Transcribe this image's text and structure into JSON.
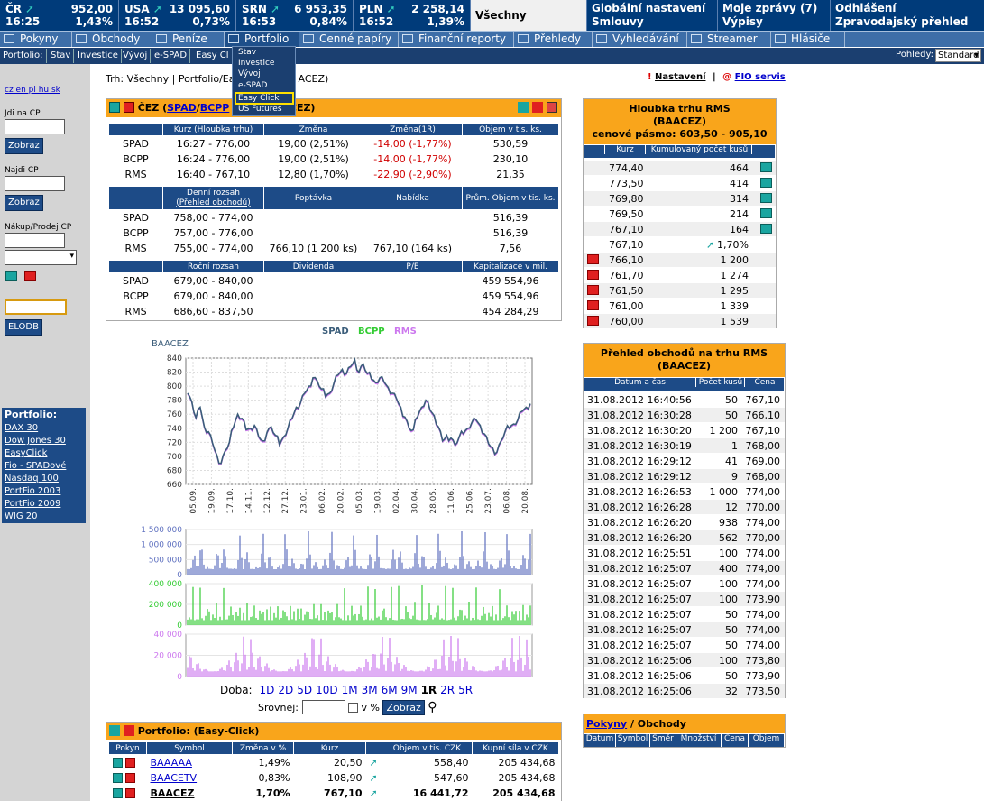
{
  "top_indices": [
    {
      "name": "ČR",
      "value": "952,00",
      "time": "16:25",
      "change": "1,43%"
    },
    {
      "name": "USA",
      "value": "13 095,60",
      "time": "16:52",
      "change": "0,73%"
    },
    {
      "name": "SRN",
      "value": "6 953,35",
      "time": "16:53",
      "change": "0,84%"
    },
    {
      "name": "PLN",
      "value": "2 258,14",
      "time": "16:52",
      "change": "1,39%"
    }
  ],
  "top_tab": "Všechny",
  "top_links": [
    {
      "l1": "Globální nastavení",
      "l2": "Smlouvy"
    },
    {
      "l1": "Moje zprávy (7)",
      "l2": "Výpisy"
    },
    {
      "l1": "Odhlášení",
      "l2": "Zpravodajský přehled"
    }
  ],
  "menu": [
    "Pokyny",
    "Obchody",
    "Peníze",
    "Portfolio",
    "Cenné papíry",
    "Finanční reporty",
    "Přehledy",
    "Vyhledávání",
    "Streamer",
    "Hlásiče"
  ],
  "submenu": [
    "Portfolio:",
    "Stav",
    "Investice",
    "Vývoj",
    "e-SPAD",
    "Easy Cl"
  ],
  "pohledy_label": "Pohledy:",
  "pohledy_value": "Standard",
  "dropdown": [
    "Stav",
    "Investice",
    "Vývoj",
    "e-SPAD",
    "Easy Click",
    "US Futures"
  ],
  "sidebar": {
    "langs": "cz en pl hu sk",
    "jdi": "Jdi na CP",
    "najdi": "Najdi CP",
    "nakup": "Nákup/Prodej CP",
    "zobraz": "Zobraz",
    "elodb": "ELODB",
    "pf_title": "Portfolio:",
    "pf_items": [
      "DAX 30",
      "Dow Jones 30",
      "EasyClick",
      "Fio - SPADové",
      "Nasdaq 100",
      "PortFio 2003",
      "PortFio 2009",
      "WIG 20"
    ]
  },
  "breadcrumb": "Trh: Všechny | Portfolio/Easy Click/BAACEZ (ČEZ)",
  "breadcrumb_visible_start": "Trh: Všechny | Portfolio/Ea",
  "breadcrumb_visible_end": "ACEZ)",
  "nastaveni": "Nastavení",
  "fio_servis": "FIO servis",
  "cez": {
    "title_prefix": "ČEZ (",
    "spad": "SPAD",
    "bcpp": "BCPP",
    "title_end": "ACEZ)",
    "h1": [
      "",
      "Kurz (Hloubka trhu)",
      "Změna",
      "Změna(1R)",
      "Objem v tis. ks."
    ],
    "r1": [
      [
        "SPAD",
        "16:27 - 776,00",
        "19,00 (2,51%)",
        "-14,00 (-1,77%)",
        "530,59"
      ],
      [
        "BCPP",
        "16:24 - 776,00",
        "19,00 (2,51%)",
        "-14,00 (-1,77%)",
        "230,10"
      ],
      [
        "RMS",
        "16:40 - 767,10",
        "12,80 (1,70%)",
        "-22,90 (-2,90%)",
        "21,35"
      ]
    ],
    "h2a": "Denní rozsah",
    "h2b": "(Přehled obchodů)",
    "h2": [
      "Poptávka",
      "Nabídka",
      "Prům. Objem v tis. ks."
    ],
    "r2": [
      [
        "SPAD",
        "758,00 - 774,00",
        "",
        "",
        "516,39"
      ],
      [
        "BCPP",
        "757,00 - 776,00",
        "",
        "",
        "516,39"
      ],
      [
        "RMS",
        "755,00 - 774,00",
        "766,10 (1 200 ks)",
        "767,10 (164 ks)",
        "7,56"
      ]
    ],
    "h3": [
      "",
      "Roční rozsah",
      "Dividenda",
      "P/E",
      "Kapitalizace v mil."
    ],
    "r3": [
      [
        "SPAD",
        "679,00 - 840,00",
        "",
        "",
        "459 554,96"
      ],
      [
        "BCPP",
        "679,00 - 840,00",
        "",
        "",
        "459 554,96"
      ],
      [
        "RMS",
        "686,60 - 837,50",
        "",
        "",
        "454 284,29"
      ]
    ]
  },
  "chart_data": {
    "type": "line",
    "title": "BAACEZ",
    "legend": [
      {
        "name": "SPAD",
        "color": "#3b5d7a"
      },
      {
        "name": "BCPP",
        "color": "#33cc33"
      },
      {
        "name": "RMS",
        "color": "#cc77ee"
      }
    ],
    "ylim": [
      660,
      840
    ],
    "yticks": [
      660,
      680,
      700,
      720,
      740,
      760,
      780,
      800,
      820,
      840
    ],
    "xticks": [
      "05.09.",
      "19.09.",
      "17.10.",
      "14.11.",
      "12.12.",
      "27.12.",
      "23.01.",
      "06.02.",
      "20.02.",
      "05.03.",
      "19.03.",
      "02.04.",
      "30.04.",
      "28.05.",
      "11.06.",
      "25.06.",
      "23.07.",
      "06.08.",
      "20.08."
    ],
    "series_spad": [
      790,
      778,
      755,
      770,
      742,
      735,
      718,
      702,
      690,
      708,
      720,
      742,
      760,
      754,
      738,
      740,
      744,
      728,
      722,
      734,
      742,
      730,
      716,
      728,
      740,
      754,
      770,
      776,
      790,
      800,
      812,
      808,
      796,
      785,
      790,
      804,
      816,
      824,
      818,
      828,
      838,
      820,
      832,
      818,
      810,
      805,
      812,
      806,
      798,
      790,
      782,
      770,
      756,
      740,
      738,
      756,
      770,
      780,
      766,
      758,
      742,
      722,
      730,
      726,
      716,
      728,
      732,
      740,
      748,
      752,
      744,
      732,
      718,
      712,
      706,
      722,
      736,
      740,
      746,
      752,
      764,
      770,
      775
    ],
    "vol_spad_labels": [
      "1 500 000",
      "1 000 000",
      "500 000",
      "0"
    ],
    "vol_bcpp_labels": [
      "400 000",
      "200 000",
      "0"
    ],
    "vol_rms_labels": [
      "40 000",
      "20 000",
      "0"
    ],
    "doba_label": "Doba:",
    "doba": [
      "1D",
      "2D",
      "5D",
      "10D",
      "1M",
      "3M",
      "6M",
      "9M",
      "1R",
      "2R",
      "5R"
    ],
    "doba_active": "1R",
    "srovnej": "Srovnej:",
    "vpct": "v %",
    "zobraz": "Zobraz"
  },
  "portfolio": {
    "title": "Portfolio:  (Easy-Click)",
    "headers": [
      "Pokyn",
      "Symbol",
      "Změna v %",
      "Kurz",
      "",
      "Objem v tis. CZK",
      "Kupní síla v CZK"
    ],
    "rows": [
      [
        "BAAAAA",
        "1,49%",
        "20,50",
        "558,40",
        "205 434,68"
      ],
      [
        "BAACETV",
        "0,83%",
        "108,90",
        "547,60",
        "205 434,68"
      ],
      [
        "BAACEZ",
        "1,70%",
        "767,10",
        "16 441,72",
        "205 434,68"
      ]
    ]
  },
  "depth": {
    "title1": "Hloubka trhu RMS",
    "title2": "(BAACEZ)",
    "title3": "cenové pásmo: 603,50 - 905,10",
    "headers": [
      "Kurz",
      "Kumulovaný počet kusů"
    ],
    "asks": [
      [
        "774,40",
        "464"
      ],
      [
        "773,50",
        "414"
      ],
      [
        "769,80",
        "314"
      ],
      [
        "769,50",
        "214"
      ],
      [
        "767,10",
        "164"
      ]
    ],
    "last": [
      "767,10",
      "1,70%"
    ],
    "bids": [
      [
        "766,10",
        "1 200"
      ],
      [
        "761,70",
        "1 274"
      ],
      [
        "761,50",
        "1 295"
      ],
      [
        "761,00",
        "1 339"
      ],
      [
        "760,00",
        "1 539"
      ]
    ]
  },
  "trades": {
    "title1": "Přehled obchodů na trhu RMS",
    "title2": "(BAACEZ)",
    "headers": [
      "Datum a čas",
      "Počet kusů",
      "Cena"
    ],
    "rows": [
      [
        "31.08.2012 16:40:56",
        "50",
        "767,10"
      ],
      [
        "31.08.2012 16:30:28",
        "50",
        "766,10"
      ],
      [
        "31.08.2012 16:30:20",
        "1 200",
        "767,10"
      ],
      [
        "31.08.2012 16:30:19",
        "1",
        "768,00"
      ],
      [
        "31.08.2012 16:29:12",
        "41",
        "769,00"
      ],
      [
        "31.08.2012 16:29:12",
        "9",
        "768,00"
      ],
      [
        "31.08.2012 16:26:53",
        "1 000",
        "774,00"
      ],
      [
        "31.08.2012 16:26:28",
        "12",
        "770,00"
      ],
      [
        "31.08.2012 16:26:20",
        "938",
        "774,00"
      ],
      [
        "31.08.2012 16:26:20",
        "562",
        "770,00"
      ],
      [
        "31.08.2012 16:25:51",
        "100",
        "774,00"
      ],
      [
        "31.08.2012 16:25:07",
        "400",
        "774,00"
      ],
      [
        "31.08.2012 16:25:07",
        "100",
        "774,00"
      ],
      [
        "31.08.2012 16:25:07",
        "100",
        "773,90"
      ],
      [
        "31.08.2012 16:25:07",
        "50",
        "774,00"
      ],
      [
        "31.08.2012 16:25:07",
        "50",
        "774,00"
      ],
      [
        "31.08.2012 16:25:07",
        "50",
        "774,00"
      ],
      [
        "31.08.2012 16:25:06",
        "100",
        "773,80"
      ],
      [
        "31.08.2012 16:25:06",
        "50",
        "773,90"
      ],
      [
        "31.08.2012 16:25:06",
        "32",
        "773,50"
      ]
    ]
  },
  "pokyny": {
    "title_link": "Pokyny",
    "title_rest": " / Obchody",
    "headers": [
      "Datum",
      "Symbol",
      "Směr",
      "Množství",
      "Cena",
      "Objem"
    ]
  }
}
